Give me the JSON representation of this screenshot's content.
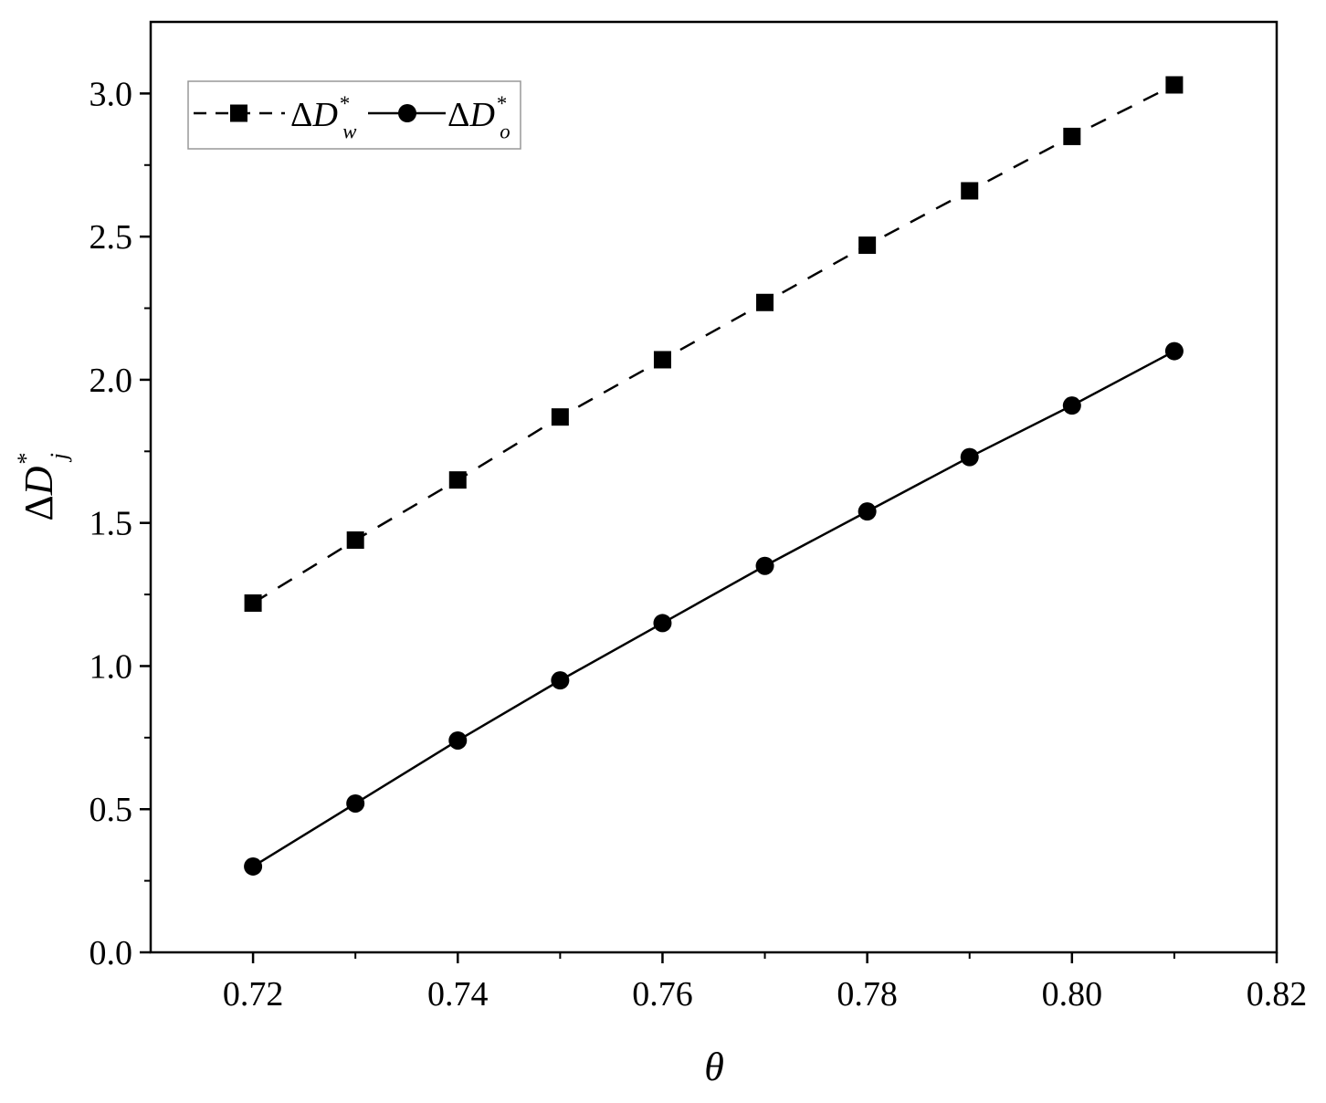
{
  "chart_data": {
    "type": "line",
    "xlabel": "θ",
    "ylabel": {
      "prefix": "Δ",
      "var": "D",
      "sub": "j",
      "sup": "*"
    },
    "xlim": [
      0.71,
      0.82
    ],
    "ylim": [
      0.0,
      3.25
    ],
    "xticks": [
      "0.72",
      "0.74",
      "0.76",
      "0.78",
      "0.80",
      "0.82"
    ],
    "yticks": [
      "0.0",
      "0.5",
      "1.0",
      "1.5",
      "2.0",
      "2.5",
      "3.0"
    ],
    "legend_position": "top-left",
    "grid": false,
    "x": [
      0.72,
      0.73,
      0.74,
      0.75,
      0.76,
      0.77,
      0.78,
      0.79,
      0.8,
      0.81
    ],
    "series": [
      {
        "name": "ΔD_w^*",
        "label": {
          "prefix": "Δ",
          "var": "D",
          "sub": "w",
          "sup": "*"
        },
        "marker": "square",
        "line": "dashed",
        "values": [
          1.22,
          1.44,
          1.65,
          1.87,
          2.07,
          2.27,
          2.47,
          2.66,
          2.85,
          3.03
        ]
      },
      {
        "name": "ΔD_o^*",
        "label": {
          "prefix": "Δ",
          "var": "D",
          "sub": "o",
          "sup": "*"
        },
        "marker": "circle",
        "line": "solid",
        "values": [
          0.3,
          0.52,
          0.74,
          0.95,
          1.15,
          1.35,
          1.54,
          1.73,
          1.91,
          2.1
        ]
      }
    ],
    "colors": {
      "line": "#000000",
      "marker": "#000000",
      "legend_border": "#999999"
    }
  }
}
